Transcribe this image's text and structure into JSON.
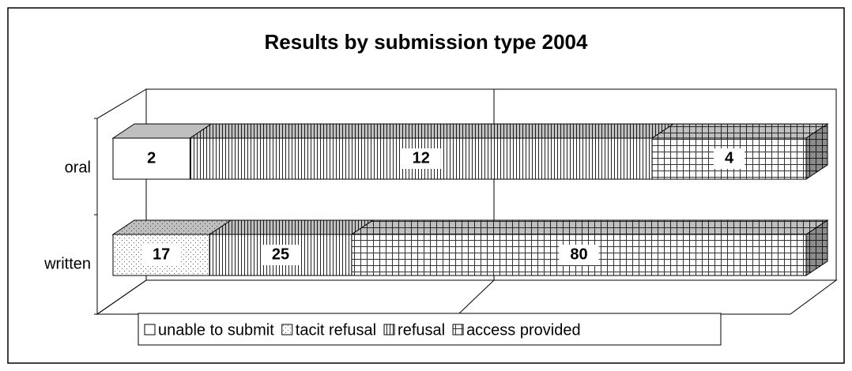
{
  "chart_data": {
    "type": "bar",
    "orientation": "horizontal",
    "stacking": "percent",
    "title": "Results by submission type 2004",
    "categories": [
      "oral",
      "written"
    ],
    "series": [
      {
        "name": "unable to submit",
        "color": "#ffffff",
        "pattern": "none",
        "values": [
          2,
          null
        ]
      },
      {
        "name": "tacit refusal",
        "color": "#ffffff",
        "pattern": "dots",
        "values": [
          null,
          17
        ]
      },
      {
        "name": "refusal",
        "color": "#ffffff",
        "pattern": "vlines",
        "values": [
          12,
          25
        ]
      },
      {
        "name": "access provided",
        "color": "#ffffff",
        "pattern": "grid",
        "values": [
          4,
          80
        ]
      }
    ],
    "legend": "bottom"
  }
}
